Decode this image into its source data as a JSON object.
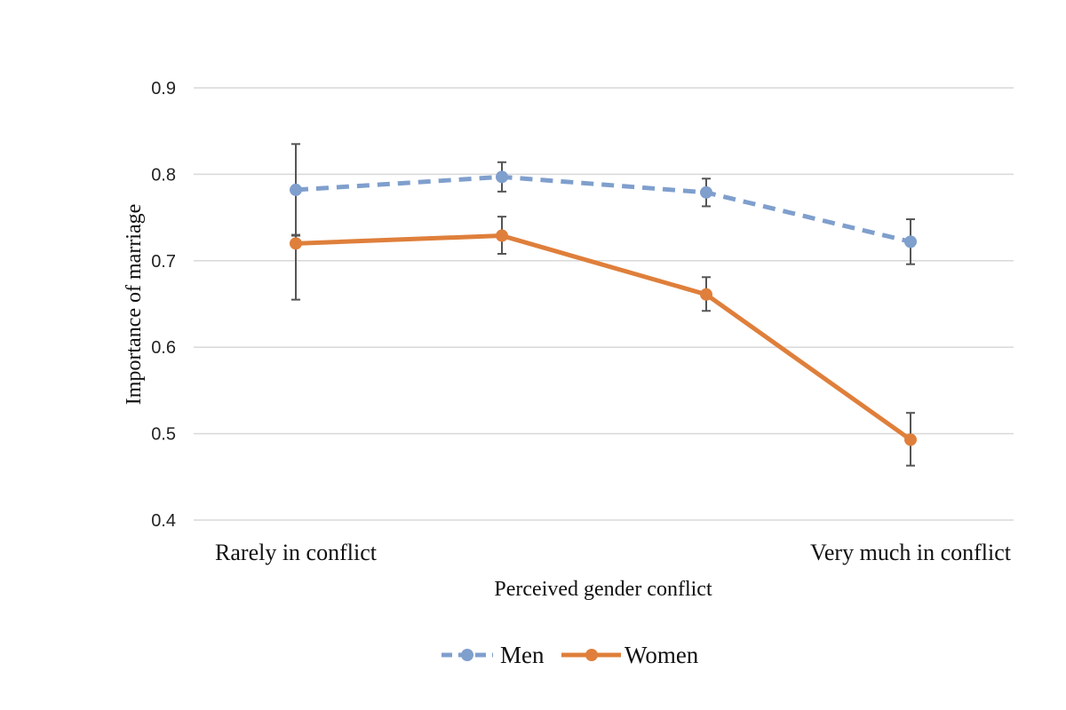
{
  "chart_data": {
    "type": "line",
    "title": "",
    "xlabel": "Perceived gender conflict",
    "ylabel": "Importance of marriage",
    "ylim": [
      0.4,
      0.9
    ],
    "yticks": [
      "0.4",
      "0.5",
      "0.6",
      "0.7",
      "0.8",
      "0.9"
    ],
    "grid": "horizontal",
    "legend_position": "bottom",
    "x_end_labels": [
      "Rarely in conflict",
      "Very much in conflict"
    ],
    "x": [
      1,
      2,
      3,
      4
    ],
    "series": [
      {
        "name": "Men",
        "color": "#7f9fcd",
        "style": "dashed",
        "values": [
          0.782,
          0.797,
          0.779,
          0.722
        ],
        "error_low": [
          0.729,
          0.78,
          0.763,
          0.696
        ],
        "error_high": [
          0.835,
          0.814,
          0.795,
          0.748
        ]
      },
      {
        "name": "Women",
        "color": "#df7f3b",
        "style": "solid",
        "values": [
          0.72,
          0.729,
          0.661,
          0.493
        ],
        "error_low": [
          0.655,
          0.708,
          0.642,
          0.463
        ],
        "error_high": [
          0.73,
          0.751,
          0.681,
          0.524
        ]
      }
    ]
  }
}
